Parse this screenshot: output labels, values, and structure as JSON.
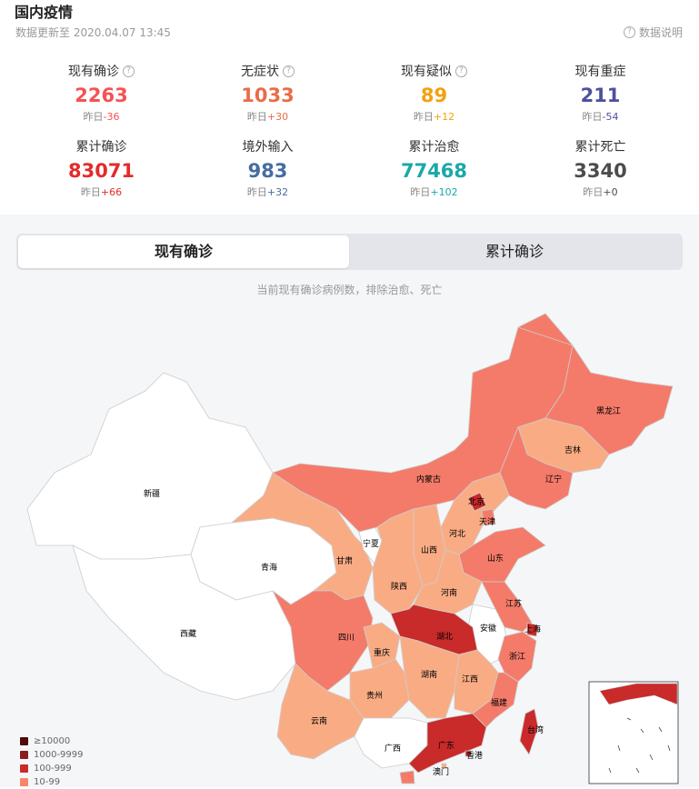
{
  "header": {
    "title": "国内疫情",
    "updated": "数据更新至 2020.04.07 13:45",
    "explain": "数据说明"
  },
  "stats": [
    {
      "label": "现有确诊",
      "value": "2263",
      "prefix": "昨日",
      "change": "-36",
      "color": "#f55253",
      "info": true
    },
    {
      "label": "无症状",
      "value": "1033",
      "prefix": "昨日",
      "change": "+30",
      "color": "#e86d48",
      "info": true
    },
    {
      "label": "现有疑似",
      "value": "89",
      "prefix": "昨日",
      "change": "+12",
      "color": "#f4a10f",
      "info": true
    },
    {
      "label": "现有重症",
      "value": "211",
      "prefix": "昨日",
      "change": "-54",
      "color": "#4f4fa0",
      "info": false
    },
    {
      "label": "累计确诊",
      "value": "83071",
      "prefix": "昨日",
      "change": "+66",
      "color": "#e32b2b",
      "info": false
    },
    {
      "label": "境外输入",
      "value": "983",
      "prefix": "昨日",
      "change": "+32",
      "color": "#476da0",
      "info": false
    },
    {
      "label": "累计治愈",
      "value": "77468",
      "prefix": "昨日",
      "change": "+102",
      "color": "#1aa8a8",
      "info": false
    },
    {
      "label": "累计死亡",
      "value": "3340",
      "prefix": "昨日",
      "change": "+0",
      "color": "#4c4c4c",
      "info": false
    }
  ],
  "tabs": {
    "active": "现有确诊",
    "inactive": "累计确诊"
  },
  "note": "当前现有确诊病例数，排除治愈、死亡",
  "provinces": {
    "xinjiang": "新疆",
    "xizang": "西藏",
    "qinghai": "青海",
    "gansu": "甘肃",
    "ningxia": "宁夏",
    "neimenggu": "内蒙古",
    "heilongjiang": "黑龙江",
    "jilin": "吉林",
    "liaoning": "辽宁",
    "beijing": "北京",
    "tianjin": "天津",
    "hebei": "河北",
    "shanxi": "山西",
    "shaanxi": "陕西",
    "shandong": "山东",
    "henan": "河南",
    "jiangsu": "江苏",
    "anhui": "安徽",
    "shanghai": "上海",
    "hubei": "湖北",
    "sichuan": "四川",
    "chongqing": "重庆",
    "zhejiang": "浙江",
    "hunan": "湖南",
    "jiangxi": "江西",
    "guizhou": "贵州",
    "yunnan": "云南",
    "fujian": "福建",
    "guangxi": "广西",
    "guangdong": "广东",
    "taiwan": "台湾",
    "xianggang": "香港",
    "aomen": "澳门"
  },
  "legend": [
    {
      "label": "≥10000",
      "color": "#4f0a0a"
    },
    {
      "label": "1000-9999",
      "color": "#8a1c1c"
    },
    {
      "label": "100-999",
      "color": "#c72b2b"
    },
    {
      "label": "10-99",
      "color": "#f5876b"
    }
  ],
  "colors": {
    "white": "#ffffff",
    "c1": "#f9ac84",
    "c2": "#f47b6a",
    "c3": "#c92a2a",
    "border": "#cccccc"
  }
}
